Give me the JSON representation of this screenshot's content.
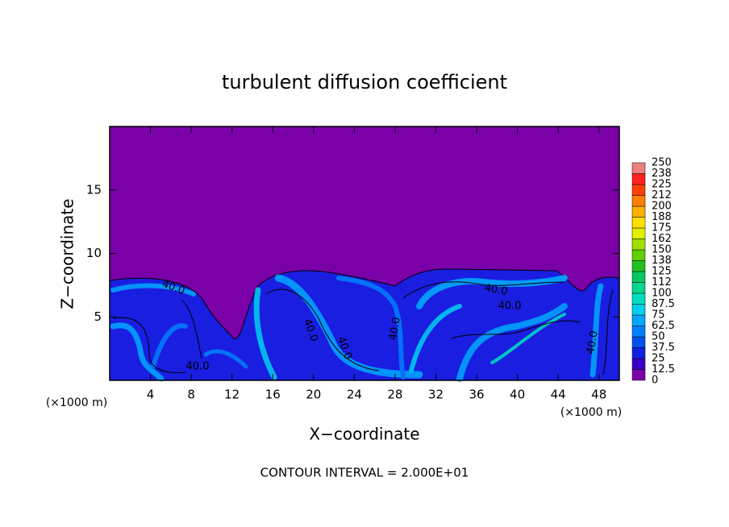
{
  "chart_data": {
    "type": "contour",
    "title": "turbulent diffusion coefficient",
    "x_label": "X−coordinate",
    "y_label": "Z−coordinate",
    "x_unit_label": "(×1000 m)",
    "x_unit_label_right": "(×1000 m)",
    "footer": "CONTOUR INTERVAL = 2.000E+01",
    "xlim": [
      0,
      50
    ],
    "xticks": [
      4,
      8,
      12,
      16,
      20,
      24,
      28,
      32,
      36,
      40,
      44,
      48
    ],
    "ylim": [
      0,
      20
    ],
    "yticks": [
      5,
      10,
      15
    ],
    "contour_labels": [
      "40.0",
      "40.0",
      "40.0",
      "40.0",
      "40.0",
      "40.0",
      "40.0",
      "40.0"
    ],
    "colorbar": {
      "ticks": [
        0,
        12.5,
        25,
        37.5,
        50,
        62.5,
        75,
        87.5,
        100,
        112,
        125,
        138,
        150,
        162,
        175,
        188,
        200,
        212,
        225,
        238,
        250
      ],
      "colors": [
        "#7a00a8",
        "#3a00c8",
        "#1020e0",
        "#0050f0",
        "#0080ff",
        "#00a8ff",
        "#00d0f0",
        "#00e0c0",
        "#00d890",
        "#00c860",
        "#20c020",
        "#60d000",
        "#a0e000",
        "#e0f000",
        "#ffe000",
        "#ffb000",
        "#ff8000",
        "#ff4000",
        "#ff2020",
        "#f08080"
      ]
    }
  }
}
